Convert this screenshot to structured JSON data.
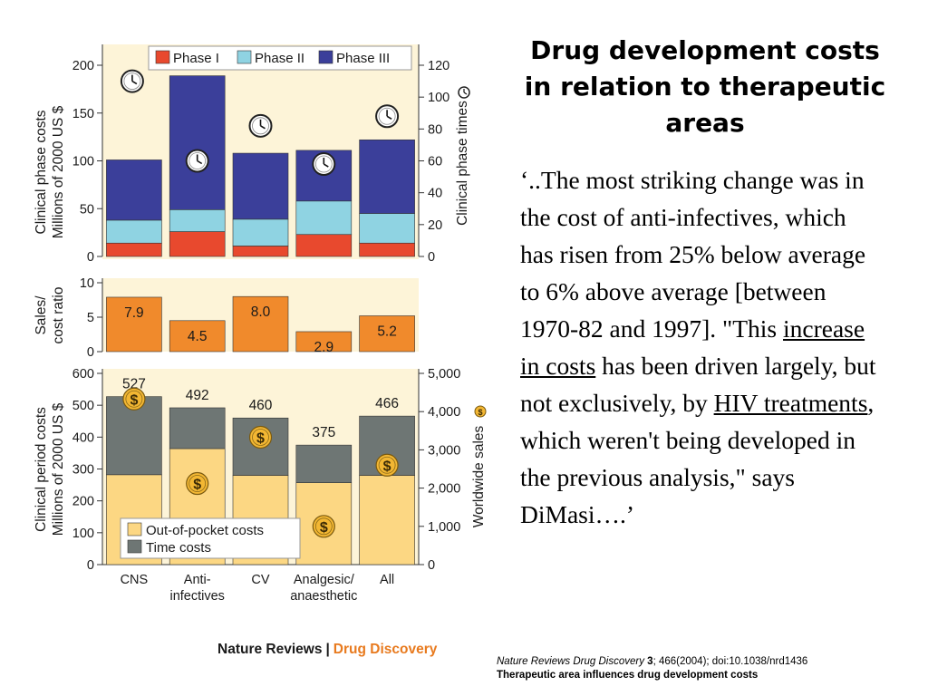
{
  "title": "Drug development costs in relation to therapeutic areas",
  "quote": {
    "part1": "‘..The most striking change was in the cost of anti-infectives, which has risen from 25% below average to 6% above average [between 1970-82 and 1997]. \"This ",
    "link1": "increase in costs",
    "part2": " has been driven largely, but not exclusively, by ",
    "link2": "HIV treatments",
    "part3": ", which weren't being developed in the previous analysis,\" says DiMasi….’"
  },
  "brand": {
    "part1": "Nature Reviews",
    "separator": "|",
    "part2": "Drug Discovery"
  },
  "citation": {
    "journal": "Nature Reviews Drug Discovery",
    "volume": "3",
    "rest": "; 466(2004); doi:10.1038/nrd1436",
    "line2": "Therapeutic area influences drug development costs"
  },
  "colors": {
    "phase1": "#e8492e",
    "phase2": "#8fd3e2",
    "phase3": "#3b3f9a",
    "sales_ratio": "#f08a2c",
    "out_of_pocket": "#fcd783",
    "time_costs": "#6e7674",
    "panel_bg": "#fdf4d8",
    "brand_accent": "#e87a1e"
  },
  "icons": {
    "phase_times": "clock-icon",
    "worldwide_sales": "dollar-coin-icon"
  },
  "chart_data": [
    {
      "type": "bar",
      "stacked": true,
      "categories": [
        "CNS",
        "Anti-infectives",
        "CV",
        "Analgesic/anaesthetic",
        "All"
      ],
      "ylabel": [
        "Clinical phase costs",
        "Millions of 2000 US $"
      ],
      "ylim": [
        0,
        200
      ],
      "yticks": [
        0,
        50,
        100,
        150,
        200
      ],
      "series": [
        {
          "name": "Phase I",
          "values": [
            14,
            26,
            11,
            23,
            14
          ]
        },
        {
          "name": "Phase II",
          "values": [
            24,
            23,
            28,
            35,
            31
          ]
        },
        {
          "name": "Phase III",
          "values": [
            63,
            140,
            69,
            53,
            77
          ]
        }
      ],
      "secondary_axis": {
        "label": "Clinical phase times",
        "ylim": [
          0,
          120
        ],
        "yticks": [
          0,
          20,
          40,
          60,
          80,
          100,
          120
        ],
        "marker": "clock",
        "values": [
          110,
          60,
          82,
          58,
          88
        ]
      },
      "legend": "top"
    },
    {
      "type": "bar",
      "categories": [
        "CNS",
        "Anti-infectives",
        "CV",
        "Analgesic/anaesthetic",
        "All"
      ],
      "ylabel": [
        "Sales/",
        "cost ratio"
      ],
      "ylim": [
        0,
        10
      ],
      "yticks": [
        0,
        5,
        10
      ],
      "values": [
        7.9,
        4.5,
        8.0,
        2.9,
        5.2
      ],
      "labels": [
        "7.9",
        "4.5",
        "8.0",
        "2.9",
        "5.2"
      ]
    },
    {
      "type": "bar",
      "stacked": true,
      "categories": [
        "CNS",
        "Anti-infectives",
        "CV",
        "Analgesic/anaesthetic",
        "All"
      ],
      "category_labels": [
        [
          "CNS"
        ],
        [
          "Anti-",
          "infectives"
        ],
        [
          "CV"
        ],
        [
          "Analgesic/",
          "anaesthetic"
        ],
        [
          "All"
        ]
      ],
      "ylabel": [
        "Clinical period costs",
        "Millions of 2000 US $"
      ],
      "ylim": [
        0,
        600
      ],
      "yticks": [
        0,
        100,
        200,
        300,
        400,
        500,
        600
      ],
      "series": [
        {
          "name": "Out-of-pocket costs",
          "values": [
            282,
            364,
            280,
            257,
            280
          ]
        },
        {
          "name": "Time costs",
          "values": [
            245,
            128,
            180,
            118,
            186
          ]
        }
      ],
      "totals": [
        527,
        492,
        460,
        375,
        466
      ],
      "total_labels": [
        "527",
        "492",
        "460",
        "375",
        "466"
      ],
      "secondary_axis": {
        "label": "Worldwide sales",
        "ylim": [
          0,
          5000
        ],
        "yticks": [
          0,
          1000,
          2000,
          3000,
          4000,
          5000
        ],
        "tick_labels": [
          "0",
          "1,000",
          "2,000",
          "3,000",
          "4,000",
          "5,000"
        ],
        "marker": "dollar",
        "values": [
          4330,
          2120,
          3330,
          1000,
          2600
        ]
      },
      "legend": "bottom-left"
    }
  ]
}
